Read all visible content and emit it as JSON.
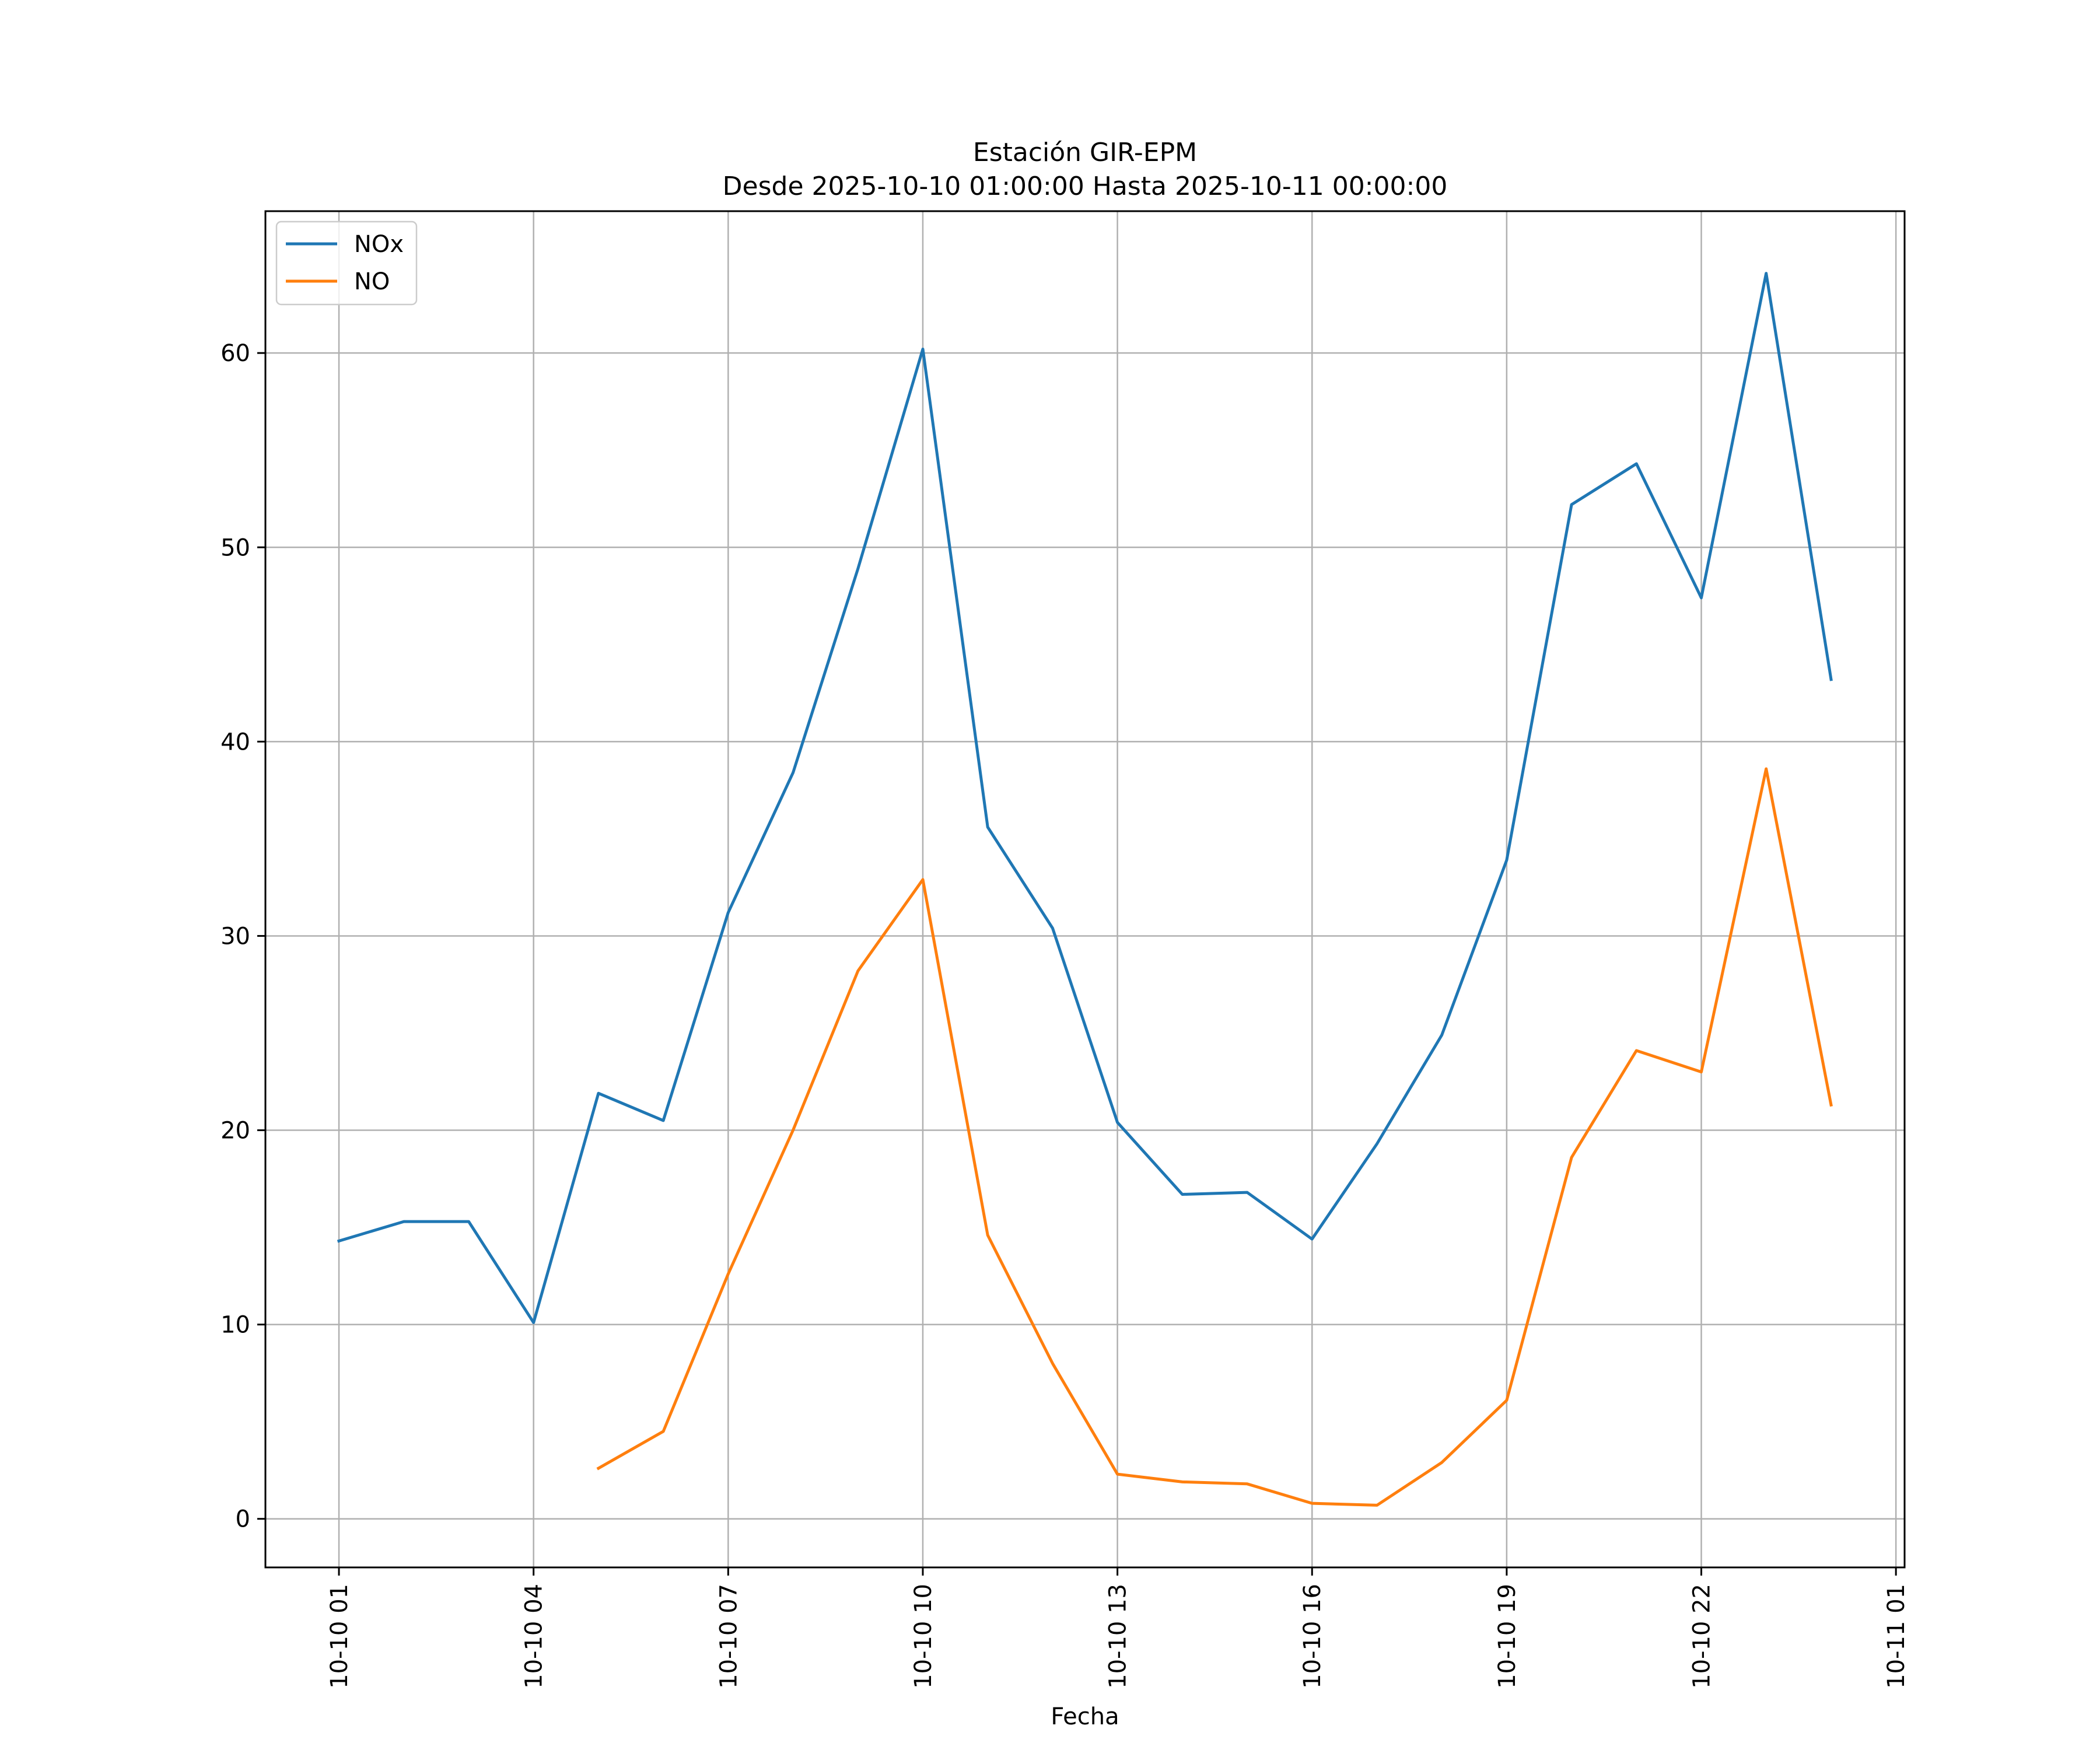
{
  "chart_data": {
    "type": "line",
    "title_line1": "Estación GIR-EPM",
    "title_line2": "Desde 2025-10-10 01:00:00 Hasta 2025-10-11 00:00:00",
    "xlabel": "Fecha",
    "ylabel": "",
    "x_ticks": [
      "10-10 01",
      "10-10 04",
      "10-10 07",
      "10-10 10",
      "10-10 13",
      "10-10 16",
      "10-10 19",
      "10-10 22",
      "10-11 01"
    ],
    "x_tick_dates": [
      "2025-10-10 01:00",
      "2025-10-10 04:00",
      "2025-10-10 07:00",
      "2025-10-10 10:00",
      "2025-10-10 13:00",
      "2025-10-10 16:00",
      "2025-10-10 19:00",
      "2025-10-10 22:00",
      "2025-10-11 01:00"
    ],
    "y_ticks": [
      0,
      10,
      20,
      30,
      40,
      50,
      60
    ],
    "xlim": [
      "2025-10-09 23:52",
      "2025-10-11 01:08"
    ],
    "ylim": [
      -2.5,
      67.3
    ],
    "grid": true,
    "legend_position": "top-left",
    "x": [
      "2025-10-10 01:00",
      "2025-10-10 02:00",
      "2025-10-10 03:00",
      "2025-10-10 04:00",
      "2025-10-10 05:00",
      "2025-10-10 06:00",
      "2025-10-10 07:00",
      "2025-10-10 08:00",
      "2025-10-10 09:00",
      "2025-10-10 10:00",
      "2025-10-10 11:00",
      "2025-10-10 12:00",
      "2025-10-10 13:00",
      "2025-10-10 14:00",
      "2025-10-10 15:00",
      "2025-10-10 16:00",
      "2025-10-10 17:00",
      "2025-10-10 18:00",
      "2025-10-10 19:00",
      "2025-10-10 20:00",
      "2025-10-10 21:00",
      "2025-10-10 22:00",
      "2025-10-10 23:00",
      "2025-10-11 00:00"
    ],
    "series": [
      {
        "name": "NOx",
        "color": "#1f77b4",
        "values": [
          14.3,
          15.3,
          15.3,
          10.1,
          21.9,
          20.5,
          31.2,
          38.4,
          48.9,
          60.2,
          35.6,
          30.4,
          20.4,
          16.7,
          16.8,
          14.4,
          19.3,
          24.9,
          33.9,
          52.2,
          54.3,
          47.4,
          64.1,
          43.2
        ]
      },
      {
        "name": "NO",
        "color": "#ff7f0e",
        "values": [
          null,
          null,
          null,
          null,
          2.6,
          4.5,
          12.6,
          20.0,
          28.2,
          32.9,
          14.6,
          8.0,
          2.3,
          1.9,
          1.8,
          0.8,
          0.7,
          2.9,
          6.1,
          18.6,
          24.1,
          23.0,
          38.6,
          21.3
        ]
      }
    ]
  }
}
